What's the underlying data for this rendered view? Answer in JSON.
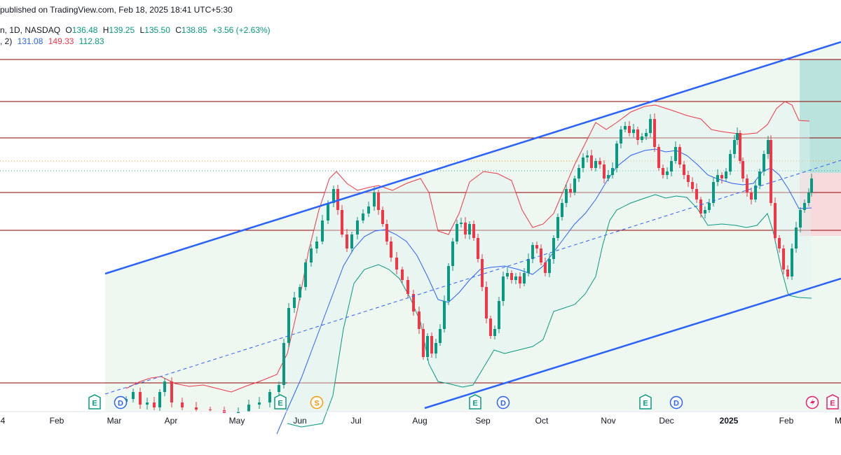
{
  "header": {
    "published": "published on TradingView.com, Feb 18, 2025 18:41 UTC+5:30",
    "symbol_line": "n, 1D, NASDAQ",
    "o_label": "O",
    "o_value": "136.48",
    "h_label": "H",
    "h_value": "139.25",
    "l_label": "L",
    "l_value": "135.50",
    "c_label": "C",
    "c_value": "138.85",
    "change": "+3.56 (+2.63%)",
    "indicator_prefix": ", 2)",
    "bb_basis": "131.08",
    "bb_upper": "149.33",
    "bb_lower": "112.83"
  },
  "colors": {
    "up": "#089981",
    "down": "#f23645",
    "channel": "#2962ff",
    "bb_basis": "#2962ff",
    "bb_upper": "#f23645",
    "bb_lower": "#089981",
    "hline": "#8b0000",
    "last_price_line": "#26a69a",
    "orange_dotted": "#ff9800",
    "target_zone": "#b2dfdb",
    "stop_zone": "#f8d7da",
    "channel_fill": "#e8f5e9",
    "event_icon_border": "#089981",
    "dividend_icon": "#2962ff",
    "split_icon": "#ff9800",
    "pink_icon": "#e91e63"
  },
  "chart_data": {
    "type": "candlestick",
    "title": "",
    "xlabel": "",
    "ylabel": "",
    "x_tick_labels": [
      "4",
      "Feb",
      "Mar",
      "Apr",
      "May",
      "Jun",
      "Jul",
      "Aug",
      "Sep",
      "Oct",
      "Nov",
      "Dec",
      "2025",
      "Feb",
      "M"
    ],
    "series": [
      {
        "name": "Price",
        "kind": "ohlc",
        "note": "daily candles (rendered from shape data)"
      }
    ],
    "bollinger_last": {
      "basis": 131.08,
      "upper": 149.33,
      "lower": 112.83
    },
    "last_ohlc": {
      "open": 136.48,
      "high": 139.25,
      "low": 135.5,
      "close": 138.85,
      "change": 3.56,
      "change_pct": 2.63
    },
    "drawings": [
      "ascending parallel channel",
      "channel midline (dashed)",
      "horizontal levels",
      "long position (target/stop zones)"
    ],
    "event_markers": [
      "E",
      "D",
      "E",
      "S",
      "E",
      "D",
      "E",
      "D",
      "E"
    ],
    "grid": false,
    "legend": "top-left"
  }
}
